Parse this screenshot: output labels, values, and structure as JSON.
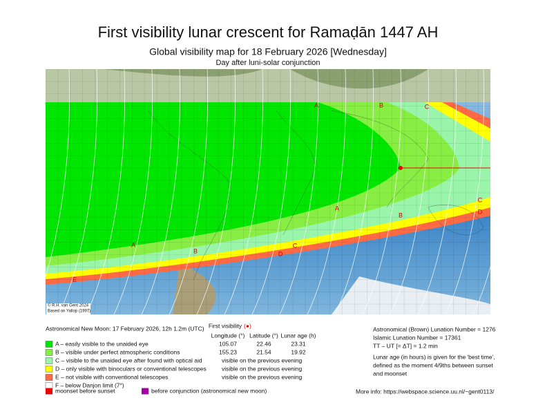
{
  "header": {
    "title": "First visibility lunar crescent for Ramaḍān 1447 AH",
    "subtitle": "Global visibility map for 18 February 2026 [Wednesday]",
    "subtitle2": "Day after luni-solar conjunction"
  },
  "map": {
    "credit": [
      "© R.H. van Gent 2024",
      "Based on Yallop (1997)"
    ],
    "zone_labels": [
      "A",
      "B",
      "C",
      "A",
      "B",
      "C",
      "D",
      "A",
      "B",
      "C",
      "D",
      "E"
    ]
  },
  "legend": {
    "new_moon": "Astronomical New Moon: 17 February 2026, 12h 1.2m (UTC)",
    "first_visibility": {
      "label": "First visibility",
      "marker": "(●)"
    },
    "columns": [
      "Longitude (°)",
      "Latitude (°)",
      "Lunar age (h)"
    ],
    "zones": [
      {
        "label": "A – easily visible to the unaided eye",
        "color": "#00e600",
        "values": [
          105.07,
          22.46,
          23.31
        ]
      },
      {
        "label": "B – visible under perfect atmospheric conditions",
        "color": "#88ee44",
        "values": [
          155.23,
          21.54,
          19.92
        ]
      },
      {
        "label": "C – visible to the unaided eye after found with optical aid",
        "color": "#99f5aa",
        "note": "visible on the previous evening"
      },
      {
        "label": "D – only visible with binoculars or conventional telescopes",
        "color": "#ffff00",
        "note": "visible on the previous evening"
      },
      {
        "label": "E – not visible with conventional telescopes",
        "color": "#ff6a45",
        "note": "visible on the previous evening"
      },
      {
        "label": "F – below Danjon limit (7°)",
        "color": "#ffffff"
      }
    ],
    "extra": [
      {
        "label": "moonset before sunset",
        "color": "#ee0000"
      },
      {
        "label": "before conjunction (astronomical new moon)",
        "color": "#a000a0"
      }
    ]
  },
  "info": {
    "lines": [
      "Astronomical (Brown) Lunation Number = 1276",
      "Islamic Lunation Number = 17361",
      "TT – UT [= ΔT] = 1.2 min"
    ],
    "note": [
      "Lunar age (in hours) is given for the 'best time',",
      "defined as the moment 4/9ths between sunset",
      "and moonset"
    ],
    "more": "More info: https://webspace.science.uu.nl/~gent0113/"
  }
}
